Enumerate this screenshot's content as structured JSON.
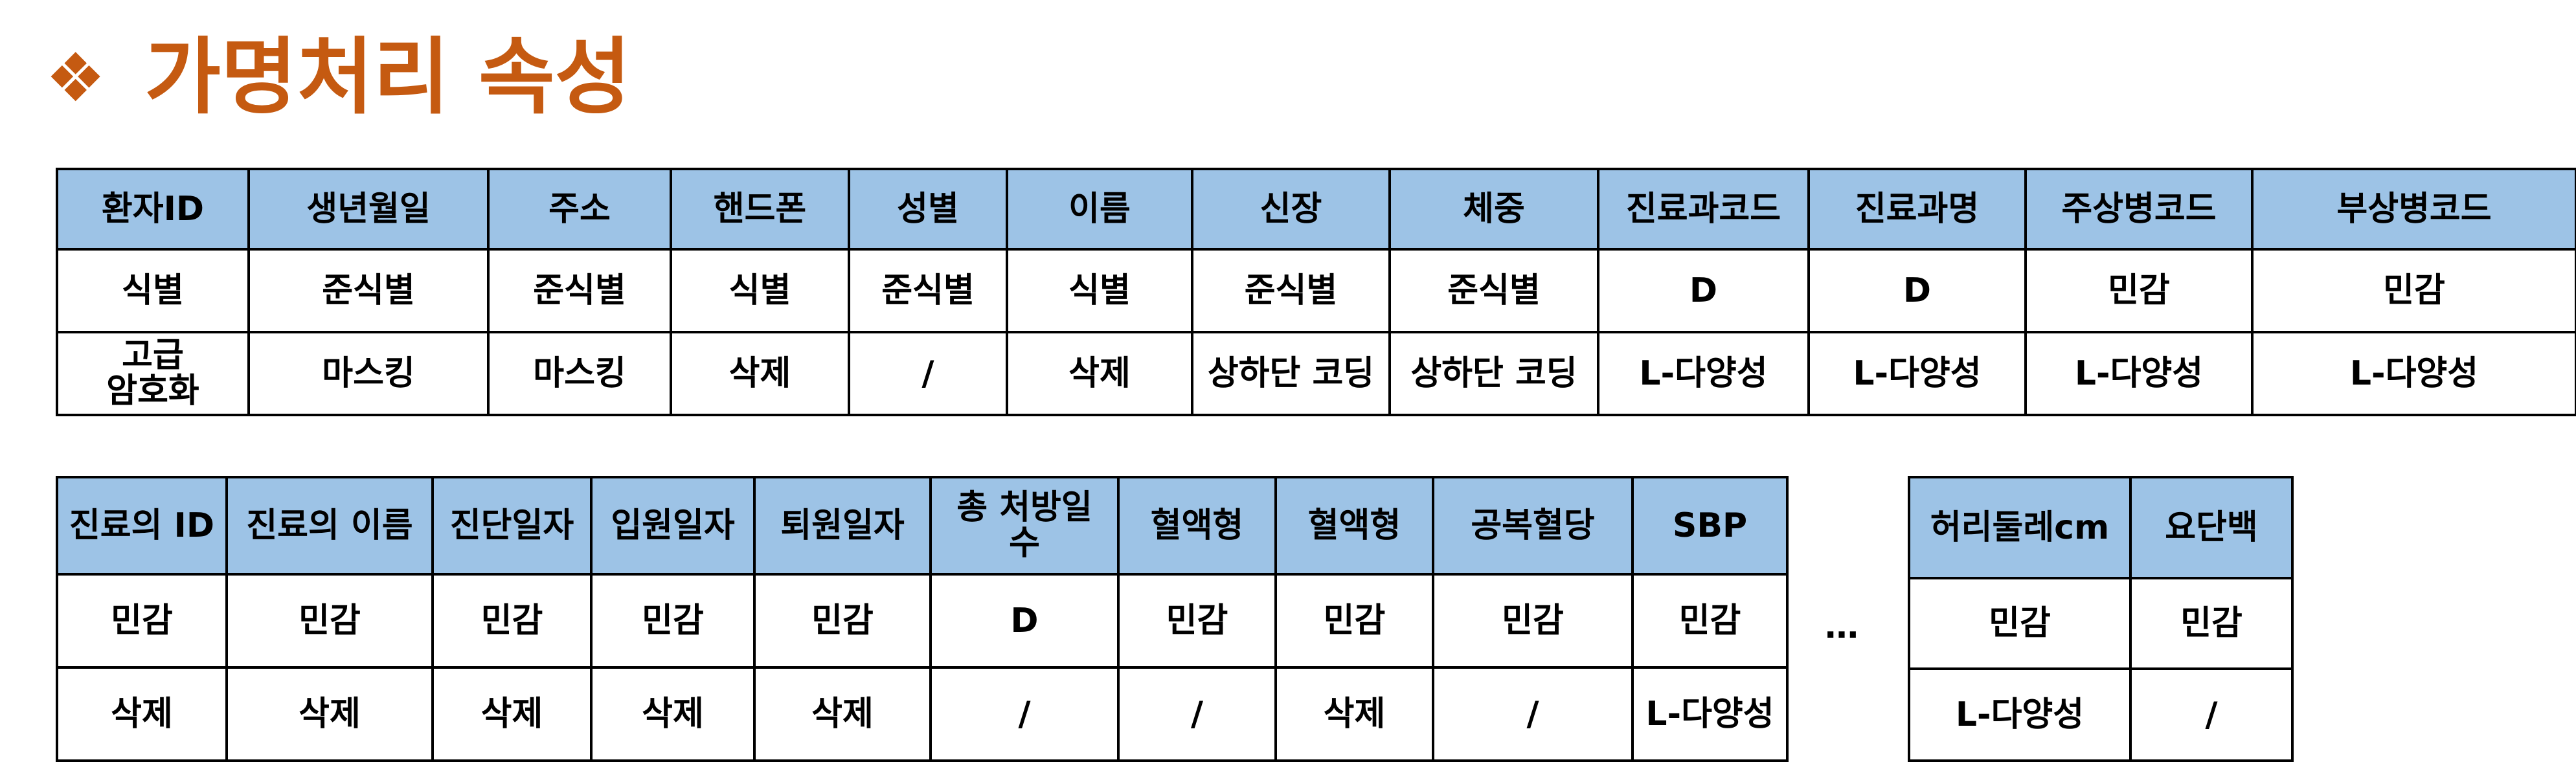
{
  "title": {
    "bullet": "❖",
    "text": "가명처리 속성"
  },
  "table1": {
    "header": [
      "환자ID",
      "생년월일",
      "주소",
      "핸드폰",
      "성별",
      "이름",
      "신장",
      "체중",
      "진료과코드",
      "진료과명",
      "주상병코드",
      "부상병코드"
    ],
    "row1": [
      "식별",
      "준식별",
      "준식별",
      "식별",
      "준식별",
      "식별",
      "준식별",
      "준식별",
      "D",
      "D",
      "민감",
      "민감"
    ],
    "row2": [
      "고급\n암호화",
      "마스킹",
      "마스킹",
      "삭제",
      "/",
      "삭제",
      "상하단 코딩",
      "상하단 코딩",
      "L-다양성",
      "L-다양성",
      "L-다양성",
      "L-다양성"
    ]
  },
  "table2": {
    "header": [
      "진료의 ID",
      "진료의 이름",
      "진단일자",
      "입원일자",
      "퇴원일자",
      "총 처방일\n수",
      "혈액형",
      "혈액형",
      "공복혈당",
      "SBP"
    ],
    "row1": [
      "민감",
      "민감",
      "민감",
      "민감",
      "민감",
      "D",
      "민감",
      "민감",
      "민감",
      "민감"
    ],
    "row2": [
      "삭제",
      "삭제",
      "삭제",
      "삭제",
      "삭제",
      "/",
      "/",
      "삭제",
      "/",
      "L-다양성"
    ]
  },
  "ellipsis": "…",
  "table3": {
    "header": [
      "허리둘레cm",
      "요단백"
    ],
    "row1": [
      "민감",
      "민감"
    ],
    "row2": [
      "L-다양성",
      "/"
    ]
  },
  "colors": {
    "title": "#C55A11",
    "header_fill": "#9DC3E6",
    "border": "#000000"
  }
}
